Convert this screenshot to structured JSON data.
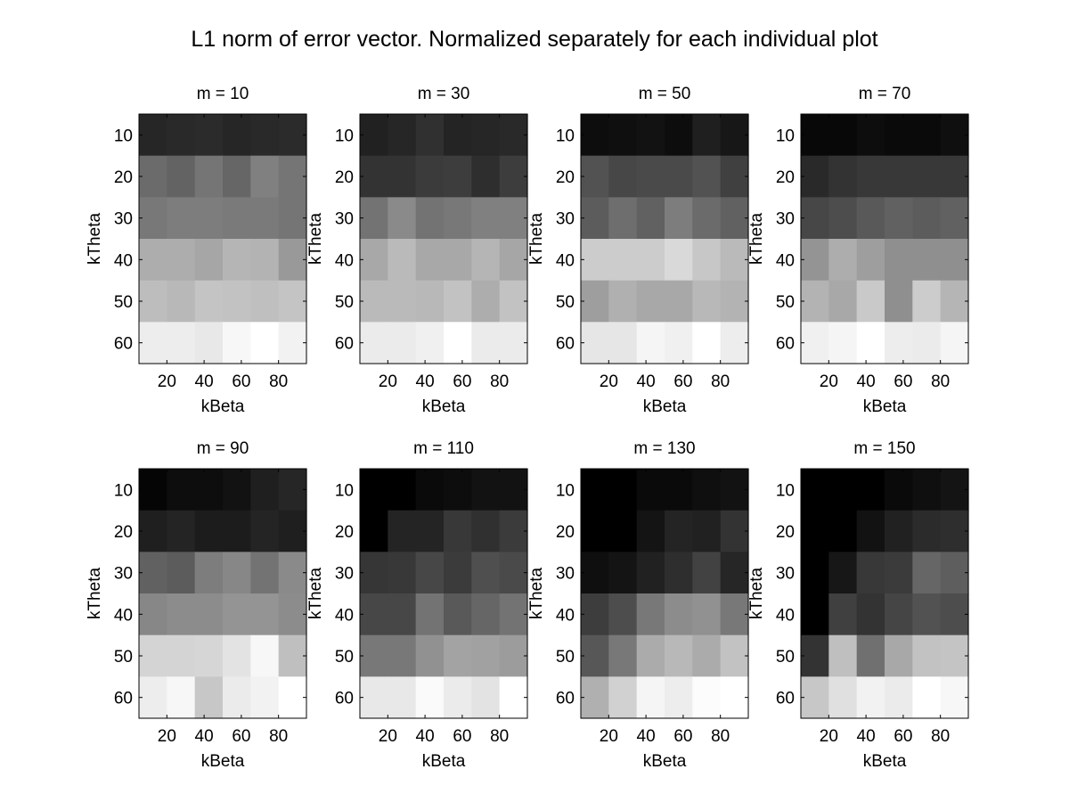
{
  "title": "L1 norm of error vector. Normalized separately for each individual plot",
  "chart_data": [
    {
      "type": "heatmap",
      "title": "m = 10",
      "xlabel": "kBeta",
      "ylabel": "kTheta",
      "x_ticks": [
        "20",
        "40",
        "60",
        "80"
      ],
      "y_ticks": [
        "10",
        "20",
        "30",
        "40",
        "50",
        "60"
      ],
      "columns": 6,
      "rows": 6,
      "colormap": "gray",
      "value_range": [
        0,
        1
      ],
      "values": [
        [
          0.15,
          0.16,
          0.17,
          0.15,
          0.16,
          0.17
        ],
        [
          0.42,
          0.39,
          0.46,
          0.4,
          0.5,
          0.46
        ],
        [
          0.47,
          0.49,
          0.49,
          0.48,
          0.48,
          0.46
        ],
        [
          0.68,
          0.68,
          0.65,
          0.71,
          0.7,
          0.6
        ],
        [
          0.74,
          0.72,
          0.77,
          0.76,
          0.75,
          0.77
        ],
        [
          0.93,
          0.93,
          0.91,
          0.97,
          1.0,
          0.95
        ]
      ]
    },
    {
      "type": "heatmap",
      "title": "m = 30",
      "xlabel": "kBeta",
      "ylabel": "kTheta",
      "x_ticks": [
        "20",
        "40",
        "60",
        "80"
      ],
      "y_ticks": [
        "10",
        "20",
        "30",
        "40",
        "50",
        "60"
      ],
      "columns": 6,
      "rows": 6,
      "colormap": "gray",
      "value_range": [
        0,
        1
      ],
      "values": [
        [
          0.13,
          0.15,
          0.19,
          0.14,
          0.15,
          0.16
        ],
        [
          0.2,
          0.2,
          0.23,
          0.24,
          0.18,
          0.24
        ],
        [
          0.45,
          0.54,
          0.45,
          0.47,
          0.5,
          0.5
        ],
        [
          0.66,
          0.73,
          0.66,
          0.66,
          0.71,
          0.65
        ],
        [
          0.73,
          0.73,
          0.72,
          0.76,
          0.68,
          0.76
        ],
        [
          0.92,
          0.92,
          0.94,
          1.0,
          0.92,
          0.92
        ]
      ]
    },
    {
      "type": "heatmap",
      "title": "m = 50",
      "xlabel": "kBeta",
      "ylabel": "kTheta",
      "x_ticks": [
        "20",
        "40",
        "60",
        "80"
      ],
      "y_ticks": [
        "10",
        "20",
        "30",
        "40",
        "50",
        "60"
      ],
      "columns": 6,
      "rows": 6,
      "colormap": "gray",
      "value_range": [
        0,
        1
      ],
      "values": [
        [
          0.05,
          0.06,
          0.07,
          0.05,
          0.12,
          0.09
        ],
        [
          0.32,
          0.28,
          0.29,
          0.29,
          0.32,
          0.25
        ],
        [
          0.36,
          0.43,
          0.38,
          0.49,
          0.42,
          0.38
        ],
        [
          0.8,
          0.8,
          0.8,
          0.85,
          0.78,
          0.73
        ],
        [
          0.62,
          0.69,
          0.66,
          0.66,
          0.72,
          0.7
        ],
        [
          0.9,
          0.9,
          0.96,
          0.94,
          1.0,
          0.93
        ]
      ]
    },
    {
      "type": "heatmap",
      "title": "m = 70",
      "xlabel": "kBeta",
      "ylabel": "kTheta",
      "x_ticks": [
        "20",
        "40",
        "60",
        "80"
      ],
      "y_ticks": [
        "10",
        "20",
        "30",
        "40",
        "50",
        "60"
      ],
      "columns": 6,
      "rows": 6,
      "colormap": "gray",
      "value_range": [
        0,
        1
      ],
      "values": [
        [
          0.03,
          0.03,
          0.05,
          0.04,
          0.04,
          0.06
        ],
        [
          0.16,
          0.2,
          0.22,
          0.22,
          0.22,
          0.22
        ],
        [
          0.28,
          0.3,
          0.35,
          0.38,
          0.36,
          0.38
        ],
        [
          0.58,
          0.68,
          0.62,
          0.56,
          0.56,
          0.56
        ],
        [
          0.7,
          0.66,
          0.79,
          0.56,
          0.8,
          0.71
        ],
        [
          0.94,
          0.96,
          1.0,
          0.93,
          0.92,
          0.96
        ]
      ]
    },
    {
      "type": "heatmap",
      "title": "m = 90",
      "xlabel": "kBeta",
      "ylabel": "kTheta",
      "x_ticks": [
        "20",
        "40",
        "60",
        "80"
      ],
      "y_ticks": [
        "10",
        "20",
        "30",
        "40",
        "50",
        "60"
      ],
      "columns": 6,
      "rows": 6,
      "colormap": "gray",
      "value_range": [
        0,
        1
      ],
      "values": [
        [
          0.02,
          0.05,
          0.05,
          0.07,
          0.12,
          0.15
        ],
        [
          0.12,
          0.14,
          0.11,
          0.11,
          0.14,
          0.12
        ],
        [
          0.38,
          0.36,
          0.49,
          0.53,
          0.45,
          0.54
        ],
        [
          0.53,
          0.55,
          0.55,
          0.58,
          0.58,
          0.55
        ],
        [
          0.83,
          0.83,
          0.84,
          0.89,
          0.97,
          0.75
        ],
        [
          0.93,
          0.97,
          0.78,
          0.92,
          0.95,
          1.0
        ]
      ]
    },
    {
      "type": "heatmap",
      "title": "m = 110",
      "xlabel": "kBeta",
      "ylabel": "kTheta",
      "x_ticks": [
        "20",
        "40",
        "60",
        "80"
      ],
      "y_ticks": [
        "10",
        "20",
        "30",
        "40",
        "50",
        "60"
      ],
      "columns": 6,
      "rows": 6,
      "colormap": "gray",
      "value_range": [
        0,
        1
      ],
      "values": [
        [
          0.0,
          0.0,
          0.04,
          0.05,
          0.07,
          0.07
        ],
        [
          0.0,
          0.14,
          0.14,
          0.22,
          0.19,
          0.23
        ],
        [
          0.21,
          0.22,
          0.28,
          0.23,
          0.31,
          0.29
        ],
        [
          0.28,
          0.28,
          0.45,
          0.35,
          0.4,
          0.45
        ],
        [
          0.47,
          0.47,
          0.57,
          0.64,
          0.63,
          0.61
        ],
        [
          0.91,
          0.91,
          0.98,
          0.92,
          0.89,
          1.0
        ]
      ]
    },
    {
      "type": "heatmap",
      "title": "m = 130",
      "xlabel": "kBeta",
      "ylabel": "kTheta",
      "x_ticks": [
        "20",
        "40",
        "60",
        "80"
      ],
      "y_ticks": [
        "10",
        "20",
        "30",
        "40",
        "50",
        "60"
      ],
      "columns": 6,
      "rows": 6,
      "colormap": "gray",
      "value_range": [
        0,
        1
      ],
      "values": [
        [
          0.0,
          0.0,
          0.04,
          0.04,
          0.06,
          0.07
        ],
        [
          0.0,
          0.0,
          0.08,
          0.14,
          0.13,
          0.2
        ],
        [
          0.06,
          0.08,
          0.13,
          0.18,
          0.26,
          0.15
        ],
        [
          0.24,
          0.3,
          0.47,
          0.55,
          0.57,
          0.47
        ],
        [
          0.34,
          0.47,
          0.67,
          0.72,
          0.67,
          0.76
        ],
        [
          0.69,
          0.82,
          0.96,
          0.93,
          0.99,
          1.0
        ]
      ]
    },
    {
      "type": "heatmap",
      "title": "m = 150",
      "xlabel": "kBeta",
      "ylabel": "kTheta",
      "x_ticks": [
        "20",
        "40",
        "60",
        "80"
      ],
      "y_ticks": [
        "10",
        "20",
        "30",
        "40",
        "50",
        "60"
      ],
      "columns": 6,
      "rows": 6,
      "colormap": "gray",
      "value_range": [
        0,
        1
      ],
      "values": [
        [
          0.0,
          0.0,
          0.0,
          0.04,
          0.06,
          0.08
        ],
        [
          0.0,
          0.0,
          0.07,
          0.13,
          0.17,
          0.18
        ],
        [
          0.0,
          0.09,
          0.22,
          0.23,
          0.4,
          0.37
        ],
        [
          0.0,
          0.25,
          0.2,
          0.27,
          0.32,
          0.3
        ],
        [
          0.2,
          0.75,
          0.44,
          0.66,
          0.76,
          0.77
        ],
        [
          0.78,
          0.88,
          0.95,
          0.92,
          1.0,
          0.97
        ]
      ]
    }
  ]
}
